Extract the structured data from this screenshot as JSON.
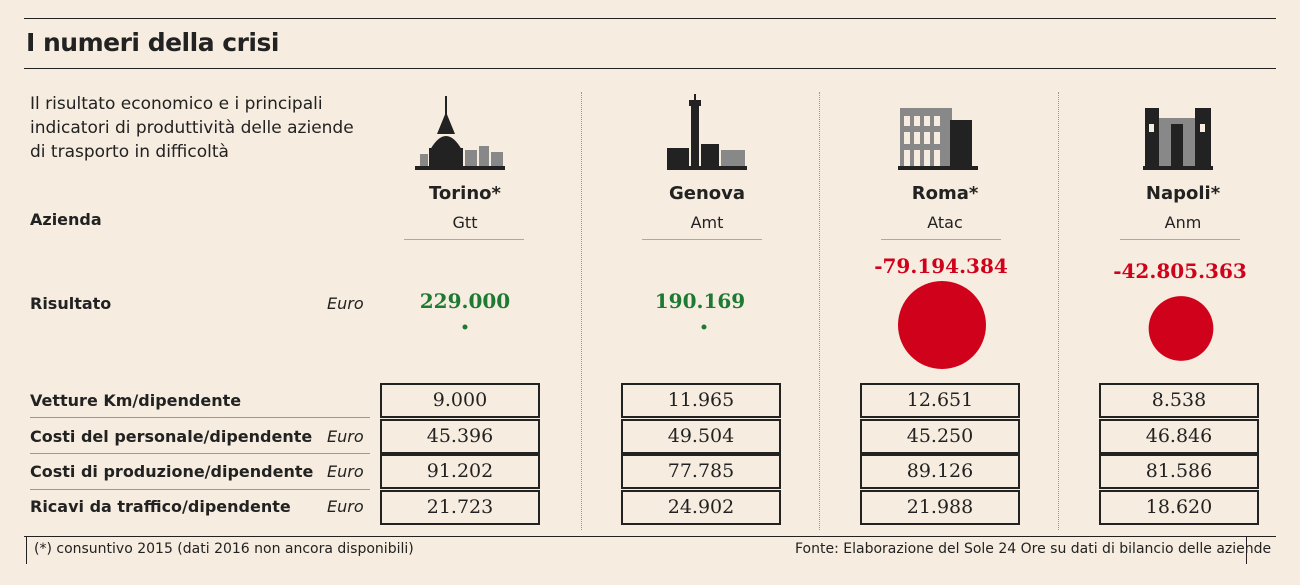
{
  "title": "I numeri della crisi",
  "subtitle": "Il risultato economico e i principali indicatori di produttività delle aziende di trasporto in difficoltà",
  "labels": {
    "azienda": "Azienda",
    "risultato": "Risultato",
    "risultato_unit": "Euro"
  },
  "metrics": [
    {
      "label": "Vetture Km/dipendente",
      "unit": ""
    },
    {
      "label": "Costi del personale/dipendente",
      "unit": "Euro"
    },
    {
      "label": "Costi di produzione/dipendente",
      "unit": "Euro"
    },
    {
      "label": "Ricavi da traffico/dipendente",
      "unit": "Euro"
    }
  ],
  "cities": [
    {
      "city": "Torino*",
      "company": "Gtt",
      "result_text": "229.000",
      "icon": "mole-antonelliana-icon"
    },
    {
      "city": "Genova",
      "company": "Amt",
      "result_text": "190.169",
      "icon": "lanterna-icon"
    },
    {
      "city": "Roma*",
      "company": "Atac",
      "result_text": "-79.194.384",
      "icon": "colosseum-icon"
    },
    {
      "city": "Napoli*",
      "company": "Anm",
      "result_text": "-42.805.363",
      "icon": "maschio-angioino-icon"
    }
  ],
  "colors": {
    "positive": "#1e7a33",
    "negative": "#d0021b",
    "background": "#f6ecdf"
  },
  "chart_data": {
    "type": "table",
    "title": "I numeri della crisi",
    "categories": [
      "Torino*",
      "Genova",
      "Roma*",
      "Napoli*"
    ],
    "companies": [
      "Gtt",
      "Amt",
      "Atac",
      "Anm"
    ],
    "risultato": [
      229000,
      190169,
      -79194384,
      -42805363
    ],
    "rows": [
      {
        "name": "Vetture Km/dipendente",
        "values": [
          "9.000",
          "11.965",
          "12.651",
          "8.538"
        ]
      },
      {
        "name": "Costi del personale/dipendente",
        "values": [
          "45.396",
          "49.504",
          "45.250",
          "46.846"
        ]
      },
      {
        "name": "Costi di produzione/dipendente",
        "values": [
          "91.202",
          "77.785",
          "89.126",
          "81.586"
        ]
      },
      {
        "name": "Ricavi da traffico/dipendente",
        "values": [
          "21.723",
          "24.902",
          "21.988",
          "18.620"
        ]
      }
    ]
  },
  "footnote": "(*) consuntivo 2015 (dati 2016 non ancora disponibili)",
  "source": "Fonte: Elaborazione del Sole 24 Ore su dati di bilancio delle aziende"
}
